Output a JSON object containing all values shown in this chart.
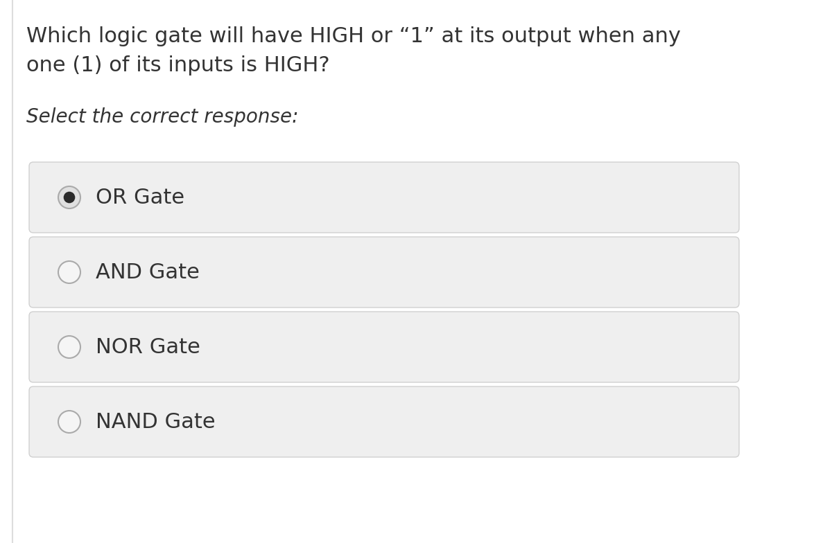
{
  "question_line1": "Which logic gate will have HIGH or “1” at its output when any",
  "question_line2": "one (1) of its inputs is HIGH?",
  "subtitle": "Select the correct response:",
  "options": [
    "OR Gate",
    "AND Gate",
    "NOR Gate",
    "NAND Gate"
  ],
  "selected_index": 0,
  "background_color": "#ffffff",
  "page_bg": "#f5f5f5",
  "option_box_color": "#efefef",
  "option_border_color": "#d0d0d0",
  "text_color": "#333333",
  "radio_border_color": "#aaaaaa",
  "radio_fill_color": "#2a2a2a",
  "radio_bg_color": "#e8e8e8",
  "question_fontsize": 22,
  "subtitle_fontsize": 20,
  "option_fontsize": 22,
  "fig_width": 12.0,
  "fig_height": 7.84,
  "dpi": 100
}
